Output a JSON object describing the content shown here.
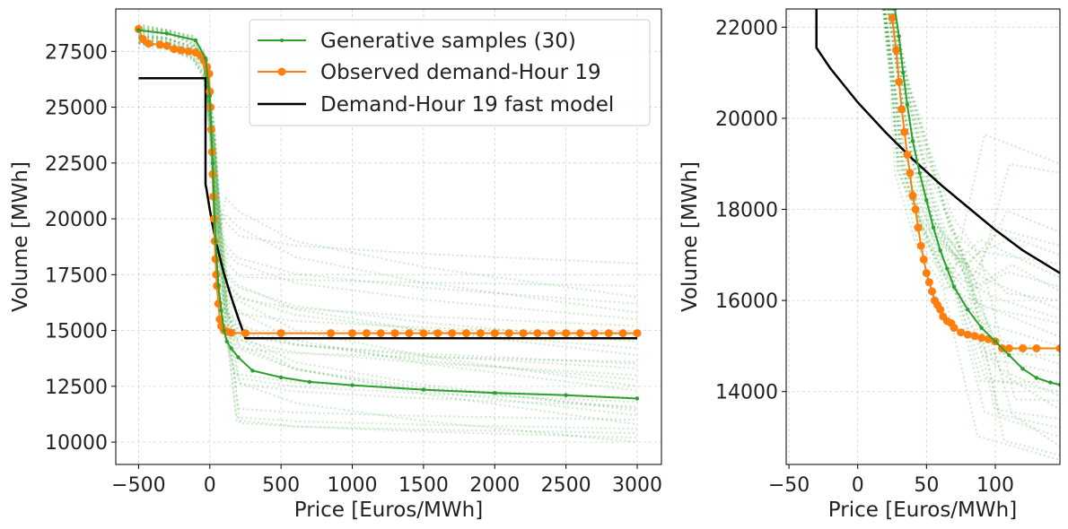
{
  "colors": {
    "generative": "#2ca02c",
    "observed": "#ff7f0e",
    "fast_model": "#000000",
    "grid": "#d0d0d0"
  },
  "chart_data": [
    {
      "id": "main",
      "type": "line",
      "xlabel": "Price [Euros/MWh]",
      "ylabel": "Volume [MWh]",
      "xlim": [
        -660,
        3170
      ],
      "ylim": [
        9000,
        29400
      ],
      "xticks": [
        -500,
        0,
        500,
        1000,
        1500,
        2000,
        2500,
        3000
      ],
      "xtick_labels": [
        "−500",
        "0",
        "500",
        "1000",
        "1500",
        "2000",
        "2500",
        "3000"
      ],
      "yticks": [
        10000,
        12500,
        15000,
        17500,
        20000,
        22500,
        25000,
        27500
      ],
      "ytick_labels": [
        "10000",
        "12500",
        "15000",
        "17500",
        "20000",
        "22500",
        "25000",
        "27500"
      ],
      "grid": true,
      "legend": {
        "placement": "top-right",
        "entries": [
          "Generative samples (30)",
          "Observed demand-Hour 19",
          "Demand-Hour 19 fast model"
        ]
      },
      "series": [
        {
          "name": "Demand-Hour 19 fast model",
          "x": [
            -500,
            -30,
            -30,
            -25,
            0,
            25,
            50,
            75,
            100,
            150,
            200,
            250,
            3000
          ],
          "y": [
            26300,
            26300,
            21550,
            21400,
            20400,
            19550,
            18800,
            18150,
            17550,
            16500,
            15550,
            14650,
            14650
          ]
        },
        {
          "name": "Observed demand-Hour 19",
          "x": [
            -500,
            -470,
            -430,
            -350,
            -300,
            -250,
            -200,
            -150,
            -100,
            -60,
            -40,
            -20,
            -5,
            0,
            5,
            10,
            15,
            20,
            25,
            30,
            35,
            40,
            45,
            50,
            60,
            70,
            80,
            100,
            120,
            150,
            250,
            500,
            850,
            1000,
            1100,
            1200,
            1300,
            1400,
            1500,
            1600,
            1700,
            1800,
            1900,
            2000,
            2100,
            2200,
            2300,
            2400,
            2500,
            2600,
            2700,
            2800,
            2900,
            3000
          ],
          "y": [
            28500,
            28050,
            27850,
            27800,
            27750,
            27600,
            27550,
            27500,
            27450,
            27300,
            27100,
            26800,
            26500,
            25700,
            25000,
            24000,
            23000,
            22000,
            21000,
            20000,
            19000,
            18200,
            17500,
            17000,
            16200,
            15500,
            15200,
            15000,
            14950,
            14900,
            14880,
            14880,
            14880,
            14880,
            14880,
            14880,
            14880,
            14880,
            14880,
            14880,
            14880,
            14880,
            14880,
            14880,
            14880,
            14880,
            14880,
            14880,
            14880,
            14880,
            14880,
            14880,
            14880,
            14880
          ]
        },
        {
          "name": "Generative sample (highlighted)",
          "x": [
            -500,
            -300,
            -100,
            -30,
            0,
            20,
            40,
            60,
            80,
            100,
            120,
            150,
            200,
            300,
            500,
            700,
            1000,
            1500,
            2000,
            2500,
            3000
          ],
          "y": [
            28450,
            28300,
            28000,
            27200,
            25500,
            22500,
            19000,
            17000,
            15900,
            15000,
            14500,
            14200,
            13800,
            13200,
            12900,
            12700,
            12550,
            12350,
            12200,
            12100,
            11950
          ]
        },
        {
          "name": "Generative samples (30)",
          "end_volumes": [
            18000,
            16500,
            16200,
            15800,
            15500,
            14800,
            14500,
            14200,
            13900,
            13600,
            13300,
            13000,
            12800,
            12500,
            12300,
            12000,
            11800,
            11600,
            11400,
            11200,
            11000,
            10800,
            10600,
            10400,
            10200,
            10000,
            17000,
            15200,
            13500,
            11500
          ]
        }
      ]
    },
    {
      "id": "zoom",
      "type": "line",
      "xlabel": "Price [Euros/MWh]",
      "ylabel": "Volume [MWh]",
      "xlim": [
        -52,
        147
      ],
      "ylim": [
        12400,
        22400
      ],
      "xticks": [
        -50,
        0,
        50,
        100
      ],
      "xtick_labels": [
        "−50",
        "0",
        "50",
        "100"
      ],
      "yticks": [
        14000,
        16000,
        18000,
        20000,
        22000
      ],
      "ytick_labels": [
        "14000",
        "16000",
        "18000",
        "20000",
        "22000"
      ],
      "grid": true,
      "series": [
        {
          "name": "Demand-Hour 19 fast model",
          "x": [
            -30,
            -30,
            -20,
            0,
            20,
            40,
            60,
            80,
            100,
            120,
            147
          ],
          "y": [
            22400,
            21550,
            21100,
            20350,
            19700,
            19100,
            18550,
            18050,
            17550,
            17100,
            16600
          ]
        },
        {
          "name": "Observed demand-Hour 19",
          "x": [
            25,
            28,
            30,
            32,
            34,
            36,
            38,
            40,
            42,
            44,
            46,
            48,
            50,
            52,
            54,
            56,
            58,
            60,
            62,
            65,
            68,
            70,
            75,
            80,
            85,
            90,
            95,
            100,
            105,
            110,
            120,
            130,
            147
          ],
          "y": [
            22200,
            21500,
            20800,
            20200,
            19700,
            19200,
            18800,
            18300,
            18000,
            17600,
            17200,
            16900,
            16600,
            16400,
            16200,
            16000,
            15900,
            15800,
            15650,
            15550,
            15500,
            15400,
            15300,
            15250,
            15220,
            15180,
            15150,
            15100,
            14950,
            14950,
            14950,
            14950,
            14950
          ]
        },
        {
          "name": "Generative sample (highlighted)",
          "x": [
            27,
            30,
            33,
            36,
            40,
            45,
            50,
            55,
            60,
            65,
            70,
            80,
            90,
            100,
            110,
            120,
            130,
            140,
            147
          ],
          "y": [
            22400,
            21800,
            21000,
            20300,
            19500,
            18800,
            18200,
            17600,
            17100,
            16700,
            16300,
            15800,
            15400,
            15100,
            14800,
            14500,
            14300,
            14200,
            14150
          ]
        },
        {
          "name": "Generative samples (30)",
          "end_volumes": [
            19000,
            18800,
            17500,
            17200,
            16800,
            16500,
            16300,
            16000,
            15800,
            15500,
            15200,
            15000,
            14800,
            14600,
            14400,
            14200,
            14000,
            13800,
            13600,
            13400,
            13200,
            13000,
            12800,
            12600,
            12500,
            17000,
            16200,
            15600,
            14900,
            13900
          ]
        }
      ]
    }
  ]
}
